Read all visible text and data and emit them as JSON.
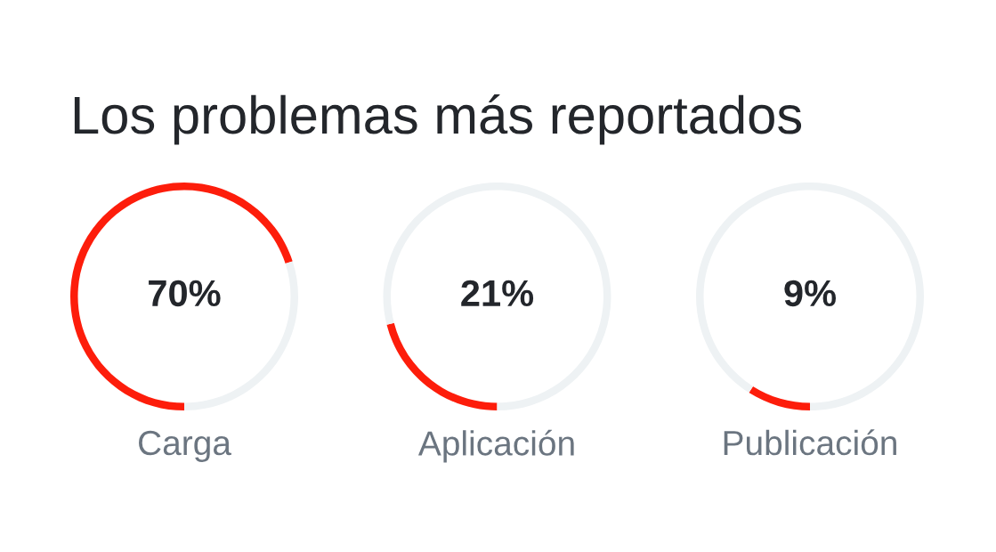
{
  "chart_data": [
    {
      "type": "donut",
      "title": "Los problemas más reportados",
      "categories": [
        "Carga",
        null
      ],
      "values": [
        70,
        30
      ],
      "colors": [
        "#fd1d0b",
        "#eef2f4"
      ],
      "annotations": [
        "70%"
      ]
    },
    {
      "type": "donut",
      "categories": [
        "Aplicación",
        null
      ],
      "values": [
        21,
        79
      ],
      "colors": [
        "#fd1d0b",
        "#eef2f4"
      ],
      "annotations": [
        "21%"
      ]
    },
    {
      "type": "donut",
      "categories": [
        "Publicación",
        null
      ],
      "values": [
        9,
        91
      ],
      "colors": [
        "#fd1d0b",
        "#eef2f4"
      ],
      "annotations": [
        "9%"
      ]
    }
  ]
}
